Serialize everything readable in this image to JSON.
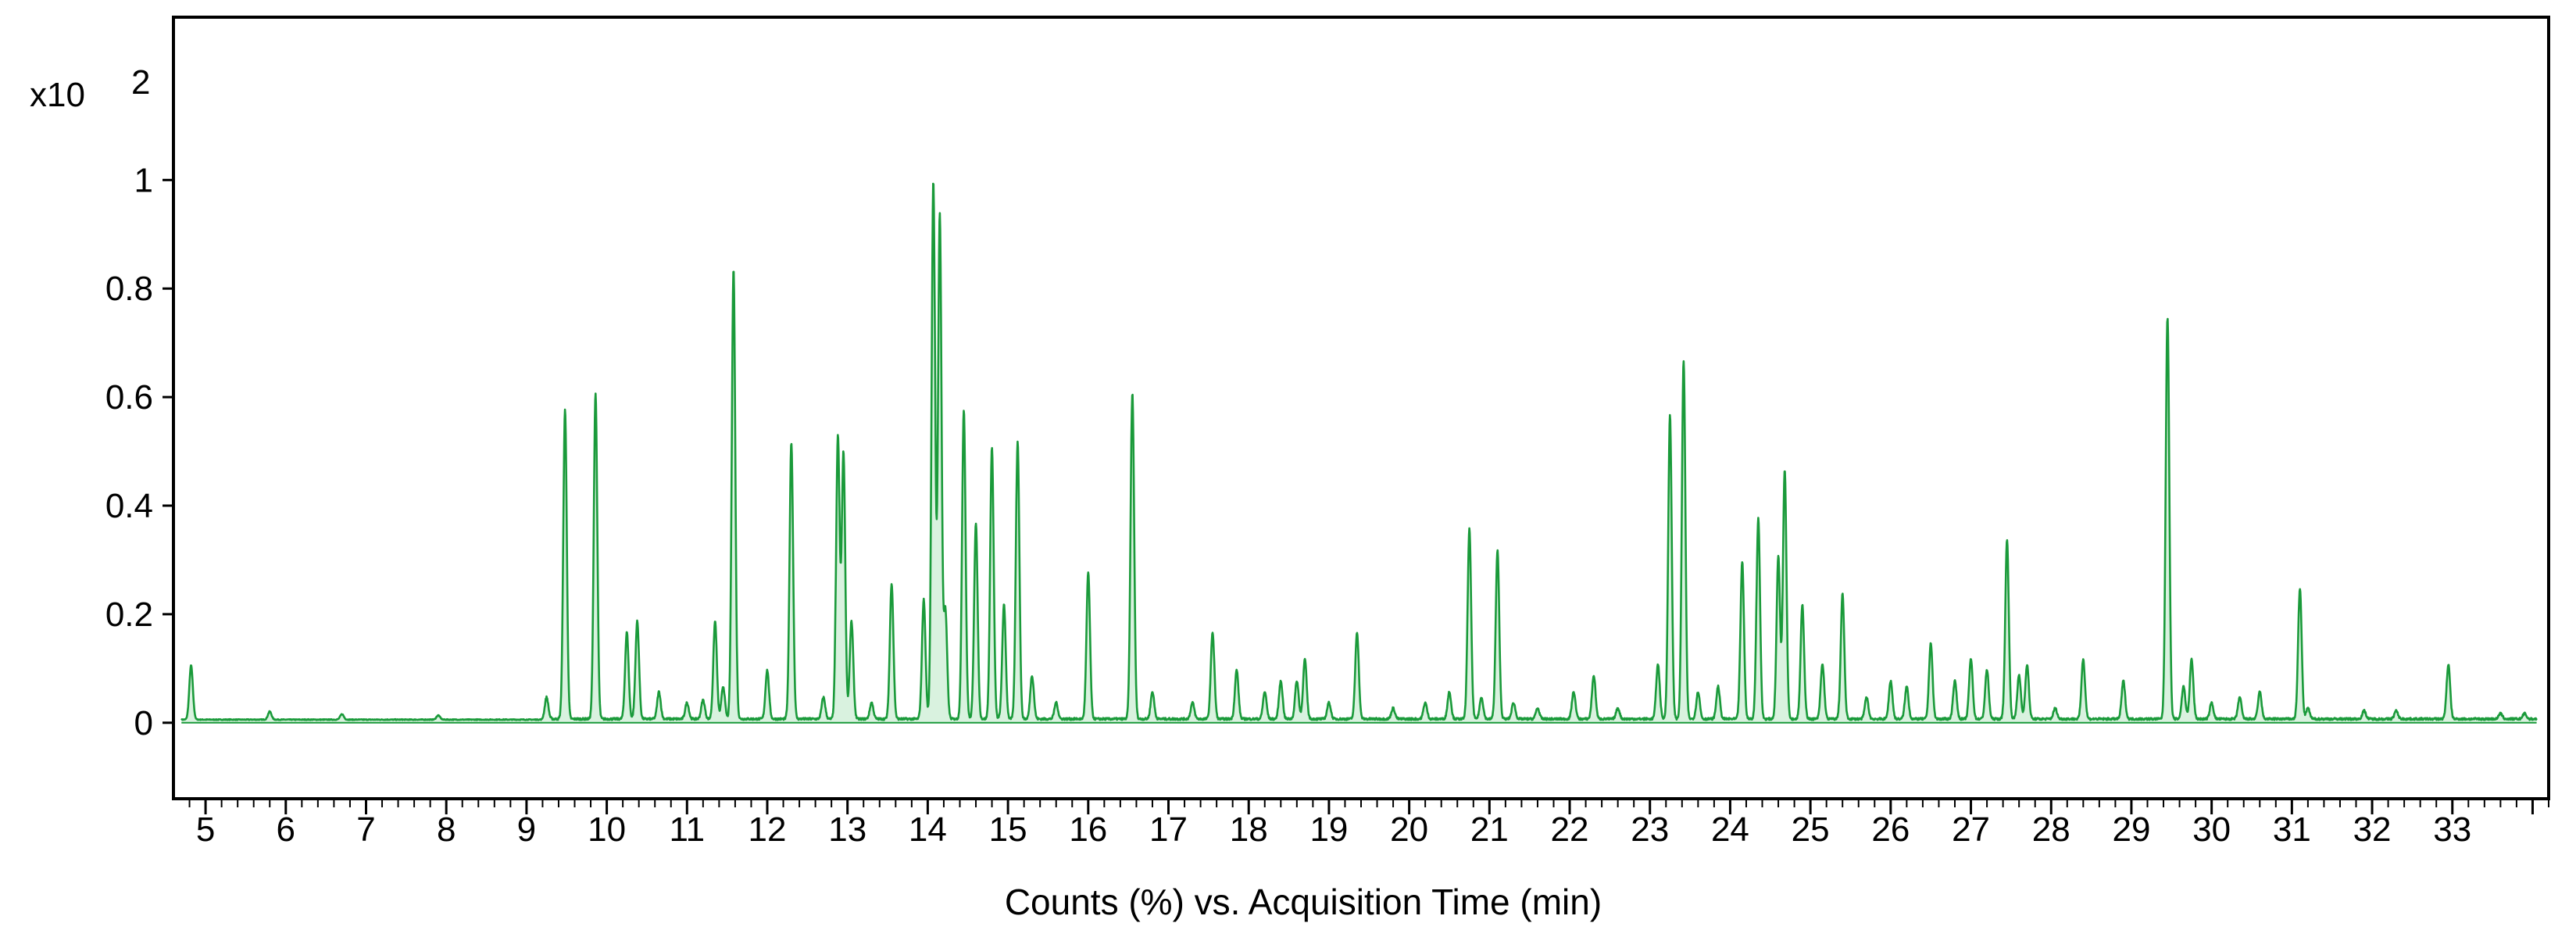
{
  "chart_data": {
    "type": "line",
    "title": "",
    "xlabel": "Counts (%) vs. Acquisition Time (min)",
    "ylabel": "",
    "y_multiplier_base": "x10",
    "y_multiplier_exp": "2",
    "xlim": [
      4.6,
      34.2
    ],
    "ylim": [
      -0.14,
      1.3
    ],
    "grid": false,
    "legend": "none",
    "color": "#1a9a3a",
    "fill_color": "#d9f2df",
    "y_ticks": [
      {
        "value": 0,
        "label": "0"
      },
      {
        "value": 0.2,
        "label": "0.2"
      },
      {
        "value": 0.4,
        "label": "0.4"
      },
      {
        "value": 0.6,
        "label": "0.6"
      },
      {
        "value": 0.8,
        "label": "0.8"
      },
      {
        "value": 1,
        "label": "1"
      }
    ],
    "x_ticks": [
      {
        "value": 5,
        "label": "5"
      },
      {
        "value": 6,
        "label": "6"
      },
      {
        "value": 7,
        "label": "7"
      },
      {
        "value": 8,
        "label": "8"
      },
      {
        "value": 9,
        "label": "9"
      },
      {
        "value": 10,
        "label": "10"
      },
      {
        "value": 11,
        "label": "11"
      },
      {
        "value": 12,
        "label": "12"
      },
      {
        "value": 13,
        "label": "13"
      },
      {
        "value": 14,
        "label": "14"
      },
      {
        "value": 15,
        "label": "15"
      },
      {
        "value": 16,
        "label": "16"
      },
      {
        "value": 17,
        "label": "17"
      },
      {
        "value": 18,
        "label": "18"
      },
      {
        "value": 19,
        "label": "19"
      },
      {
        "value": 20,
        "label": "20"
      },
      {
        "value": 21,
        "label": "21"
      },
      {
        "value": 22,
        "label": "22"
      },
      {
        "value": 23,
        "label": "23"
      },
      {
        "value": 24,
        "label": "24"
      },
      {
        "value": 25,
        "label": "25"
      },
      {
        "value": 26,
        "label": "26"
      },
      {
        "value": 27,
        "label": "27"
      },
      {
        "value": 28,
        "label": "28"
      },
      {
        "value": 29,
        "label": "29"
      },
      {
        "value": 30,
        "label": "30"
      },
      {
        "value": 31,
        "label": "31"
      },
      {
        "value": 32,
        "label": "32"
      },
      {
        "value": 33,
        "label": "33"
      }
    ],
    "baseline": 0.005,
    "peaks": [
      {
        "x": 4.82,
        "y": 0.1
      },
      {
        "x": 5.8,
        "y": 0.015
      },
      {
        "x": 6.7,
        "y": 0.01
      },
      {
        "x": 7.9,
        "y": 0.008
      },
      {
        "x": 9.25,
        "y": 0.04
      },
      {
        "x": 9.48,
        "y": 0.57
      },
      {
        "x": 9.86,
        "y": 0.6
      },
      {
        "x": 10.25,
        "y": 0.16
      },
      {
        "x": 10.38,
        "y": 0.18
      },
      {
        "x": 10.65,
        "y": 0.05
      },
      {
        "x": 11.0,
        "y": 0.03
      },
      {
        "x": 11.2,
        "y": 0.035
      },
      {
        "x": 11.35,
        "y": 0.18
      },
      {
        "x": 11.45,
        "y": 0.06
      },
      {
        "x": 11.58,
        "y": 0.83
      },
      {
        "x": 12.0,
        "y": 0.09
      },
      {
        "x": 12.3,
        "y": 0.51
      },
      {
        "x": 12.7,
        "y": 0.04
      },
      {
        "x": 12.88,
        "y": 0.52
      },
      {
        "x": 12.95,
        "y": 0.49
      },
      {
        "x": 13.05,
        "y": 0.18
      },
      {
        "x": 13.3,
        "y": 0.03
      },
      {
        "x": 13.55,
        "y": 0.25
      },
      {
        "x": 13.95,
        "y": 0.22
      },
      {
        "x": 14.07,
        "y": 0.99
      },
      {
        "x": 14.15,
        "y": 0.93
      },
      {
        "x": 14.22,
        "y": 0.2
      },
      {
        "x": 14.45,
        "y": 0.57
      },
      {
        "x": 14.6,
        "y": 0.36
      },
      {
        "x": 14.8,
        "y": 0.5
      },
      {
        "x": 14.95,
        "y": 0.21
      },
      {
        "x": 15.12,
        "y": 0.51
      },
      {
        "x": 15.3,
        "y": 0.08
      },
      {
        "x": 15.6,
        "y": 0.03
      },
      {
        "x": 16.0,
        "y": 0.27
      },
      {
        "x": 16.55,
        "y": 0.6
      },
      {
        "x": 16.8,
        "y": 0.05
      },
      {
        "x": 17.3,
        "y": 0.03
      },
      {
        "x": 17.55,
        "y": 0.16
      },
      {
        "x": 17.85,
        "y": 0.09
      },
      {
        "x": 18.2,
        "y": 0.05
      },
      {
        "x": 18.4,
        "y": 0.07
      },
      {
        "x": 18.6,
        "y": 0.07
      },
      {
        "x": 18.7,
        "y": 0.11
      },
      {
        "x": 19.0,
        "y": 0.03
      },
      {
        "x": 19.35,
        "y": 0.16
      },
      {
        "x": 19.8,
        "y": 0.02
      },
      {
        "x": 20.2,
        "y": 0.03
      },
      {
        "x": 20.5,
        "y": 0.05
      },
      {
        "x": 20.75,
        "y": 0.35
      },
      {
        "x": 20.9,
        "y": 0.04
      },
      {
        "x": 21.1,
        "y": 0.31
      },
      {
        "x": 21.3,
        "y": 0.03
      },
      {
        "x": 21.6,
        "y": 0.02
      },
      {
        "x": 22.05,
        "y": 0.05
      },
      {
        "x": 22.3,
        "y": 0.08
      },
      {
        "x": 22.6,
        "y": 0.02
      },
      {
        "x": 23.1,
        "y": 0.1
      },
      {
        "x": 23.25,
        "y": 0.56
      },
      {
        "x": 23.42,
        "y": 0.66
      },
      {
        "x": 23.6,
        "y": 0.05
      },
      {
        "x": 23.85,
        "y": 0.06
      },
      {
        "x": 24.15,
        "y": 0.29
      },
      {
        "x": 24.35,
        "y": 0.37
      },
      {
        "x": 24.6,
        "y": 0.3
      },
      {
        "x": 24.68,
        "y": 0.46
      },
      {
        "x": 24.9,
        "y": 0.21
      },
      {
        "x": 25.15,
        "y": 0.1
      },
      {
        "x": 25.4,
        "y": 0.23
      },
      {
        "x": 25.7,
        "y": 0.04
      },
      {
        "x": 26.0,
        "y": 0.07
      },
      {
        "x": 26.2,
        "y": 0.06
      },
      {
        "x": 26.5,
        "y": 0.14
      },
      {
        "x": 26.8,
        "y": 0.07
      },
      {
        "x": 27.0,
        "y": 0.11
      },
      {
        "x": 27.2,
        "y": 0.09
      },
      {
        "x": 27.45,
        "y": 0.33
      },
      {
        "x": 27.6,
        "y": 0.08
      },
      {
        "x": 27.7,
        "y": 0.1
      },
      {
        "x": 28.05,
        "y": 0.02
      },
      {
        "x": 28.4,
        "y": 0.11
      },
      {
        "x": 28.9,
        "y": 0.07
      },
      {
        "x": 29.45,
        "y": 0.74
      },
      {
        "x": 29.65,
        "y": 0.06
      },
      {
        "x": 29.75,
        "y": 0.11
      },
      {
        "x": 30.0,
        "y": 0.03
      },
      {
        "x": 30.35,
        "y": 0.04
      },
      {
        "x": 30.6,
        "y": 0.05
      },
      {
        "x": 31.1,
        "y": 0.24
      },
      {
        "x": 31.2,
        "y": 0.02
      },
      {
        "x": 31.9,
        "y": 0.015
      },
      {
        "x": 32.3,
        "y": 0.015
      },
      {
        "x": 32.95,
        "y": 0.1
      },
      {
        "x": 33.6,
        "y": 0.01
      },
      {
        "x": 33.9,
        "y": 0.01
      }
    ]
  }
}
